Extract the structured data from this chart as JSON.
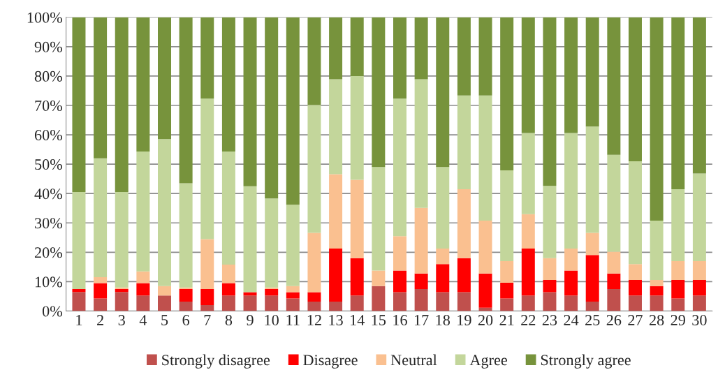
{
  "chart_data": {
    "type": "bar",
    "stacked": true,
    "categories": [
      "1",
      "2",
      "3",
      "4",
      "5",
      "6",
      "7",
      "8",
      "9",
      "10",
      "11",
      "12",
      "13",
      "14",
      "15",
      "16",
      "17",
      "18",
      "19",
      "20",
      "21",
      "22",
      "23",
      "24",
      "25",
      "26",
      "27",
      "28",
      "29",
      "30"
    ],
    "series": [
      {
        "name": "Strongly disagree",
        "color": "#c0504d",
        "values": [
          6.5,
          4.3,
          6.5,
          5.3,
          5.3,
          3.2,
          2,
          5.3,
          5.3,
          5.3,
          4.3,
          3.2,
          3.2,
          5.3,
          8.5,
          6.4,
          7.5,
          6.4,
          6.4,
          1.1,
          4.3,
          5.3,
          6.4,
          5.3,
          3.2,
          7.5,
          5.3,
          5.3,
          4.3,
          5.3
        ]
      },
      {
        "name": "Disagree",
        "color": "#ff0000",
        "values": [
          1,
          5.2,
          1,
          4.2,
          0,
          4.3,
          5.5,
          4.2,
          1.1,
          2.2,
          2.1,
          3.2,
          18.1,
          12.7,
          0,
          7.4,
          5.3,
          9.6,
          11.6,
          11.7,
          5.3,
          16,
          4.2,
          8.5,
          15.9,
          5.3,
          5.3,
          3.2,
          6.3,
          5.3
        ]
      },
      {
        "name": "Neutral",
        "color": "#fac090",
        "values": [
          0,
          2,
          0.5,
          4,
          3.2,
          0.5,
          17,
          6.3,
          0,
          0.5,
          2.1,
          20.2,
          25.3,
          26.7,
          5.3,
          11.7,
          22.3,
          5.3,
          23.5,
          18,
          7.4,
          11.7,
          7.4,
          7.5,
          7.5,
          7.4,
          5.4,
          2.1,
          6.4,
          6.4
        ]
      },
      {
        "name": "Agree",
        "color": "#c3d69b",
        "values": [
          33,
          40.5,
          32.5,
          40.8,
          50,
          35.5,
          47.8,
          38.5,
          36.1,
          30.3,
          27.7,
          43.6,
          32.3,
          35.3,
          35.2,
          46.8,
          43.8,
          27.7,
          31.9,
          42.6,
          30.9,
          27.6,
          24.6,
          39.3,
          36.2,
          33,
          35,
          20.2,
          24.5,
          29.8
        ]
      },
      {
        "name": "Strongly agree",
        "color": "#77933c",
        "values": [
          59.5,
          48,
          59.5,
          45.7,
          41.5,
          56.5,
          27.7,
          45.7,
          57.5,
          61.7,
          63.8,
          29.8,
          21.1,
          20,
          51,
          27.7,
          21.1,
          51,
          26.6,
          26.6,
          52.1,
          39.4,
          57.4,
          39.4,
          37.2,
          46.8,
          49,
          69.2,
          58.5,
          53.2
        ]
      }
    ],
    "ylim": [
      0,
      100
    ],
    "yticks": [
      {
        "value": 0,
        "label": "0%"
      },
      {
        "value": 10,
        "label": "10%"
      },
      {
        "value": 20,
        "label": "20%"
      },
      {
        "value": 30,
        "label": "30%"
      },
      {
        "value": 40,
        "label": "40%"
      },
      {
        "value": 50,
        "label": "50%"
      },
      {
        "value": 60,
        "label": "60%"
      },
      {
        "value": 70,
        "label": "70%"
      },
      {
        "value": 80,
        "label": "80%"
      },
      {
        "value": 90,
        "label": "90%"
      },
      {
        "value": 100,
        "label": "100%"
      }
    ],
    "grid": "y",
    "legend": "bottom"
  }
}
